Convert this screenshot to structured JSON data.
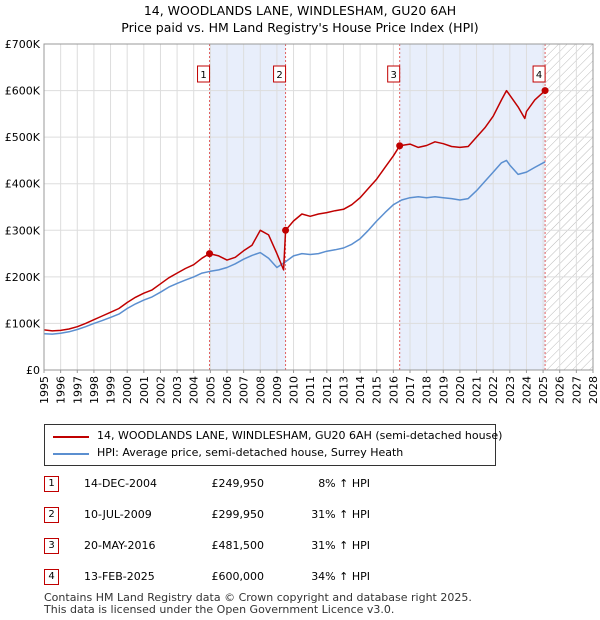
{
  "chart_data": {
    "type": "line",
    "title": "14, WOODLANDS LANE, WINDLESHAM, GU20 6AH",
    "subtitle": "Price paid vs. HM Land Registry's House Price Index (HPI)",
    "xlabel": "",
    "ylabel": "",
    "xlim": [
      1995,
      2028
    ],
    "ylim": [
      0,
      700000
    ],
    "x_ticks": [
      "1995",
      "1996",
      "1997",
      "1998",
      "1999",
      "2000",
      "2001",
      "2002",
      "2003",
      "2004",
      "2005",
      "2006",
      "2007",
      "2008",
      "2009",
      "2010",
      "2011",
      "2012",
      "2013",
      "2014",
      "2015",
      "2016",
      "2017",
      "2018",
      "2019",
      "2020",
      "2021",
      "2022",
      "2023",
      "2024",
      "2025",
      "2026",
      "2027",
      "2028"
    ],
    "y_ticks": [
      {
        "value": 0,
        "label": "£0"
      },
      {
        "value": 100000,
        "label": "£100K"
      },
      {
        "value": 200000,
        "label": "£200K"
      },
      {
        "value": 300000,
        "label": "£300K"
      },
      {
        "value": 400000,
        "label": "£400K"
      },
      {
        "value": 500000,
        "label": "£500K"
      },
      {
        "value": 600000,
        "label": "£600K"
      },
      {
        "value": 700000,
        "label": "£700K"
      }
    ],
    "grid": true,
    "ownership_shading": [
      [
        2004.95,
        2009.52
      ],
      [
        2016.38,
        2025.12
      ]
    ],
    "future_hatch_from": 2025.12,
    "series": [
      {
        "name": "14, WOODLANDS LANE, WINDLESHAM, GU20 6AH (semi-detached house)",
        "color": "#c00000",
        "x": [
          1995,
          1995.5,
          1996,
          1996.5,
          1997,
          1997.5,
          1998,
          1998.5,
          1999,
          1999.5,
          2000,
          2000.5,
          2001,
          2001.5,
          2002,
          2002.5,
          2003,
          2003.5,
          2004,
          2004.5,
          2004.95,
          2005.5,
          2006,
          2006.5,
          2007,
          2007.5,
          2008,
          2008.5,
          2009,
          2009.4,
          2009.52,
          2010,
          2010.5,
          2011,
          2011.5,
          2012,
          2012.5,
          2013,
          2013.5,
          2014,
          2014.5,
          2015,
          2015.5,
          2016,
          2016.38,
          2017,
          2017.5,
          2018,
          2018.5,
          2019,
          2019.5,
          2020,
          2020.5,
          2021,
          2021.5,
          2022,
          2022.5,
          2022.8,
          2023,
          2023.5,
          2023.9,
          2024,
          2024.5,
          2025.12
        ],
        "values": [
          86000,
          84000,
          85000,
          88000,
          93000,
          100000,
          108000,
          116000,
          124000,
          132000,
          145000,
          156000,
          165000,
          172000,
          185000,
          198000,
          208000,
          218000,
          226000,
          240000,
          249950,
          245000,
          236000,
          242000,
          256000,
          268000,
          300000,
          290000,
          250000,
          215000,
          299950,
          320000,
          335000,
          330000,
          335000,
          338000,
          342000,
          345000,
          355000,
          370000,
          390000,
          410000,
          435000,
          460000,
          481500,
          485000,
          478000,
          482000,
          490000,
          486000,
          480000,
          478000,
          480000,
          500000,
          520000,
          545000,
          580000,
          600000,
          590000,
          565000,
          540000,
          555000,
          580000,
          600000
        ]
      },
      {
        "name": "HPI: Average price, semi-detached house, Surrey Heath",
        "color": "#5b8fd0",
        "x": [
          1995,
          1995.5,
          1996,
          1996.5,
          1997,
          1997.5,
          1998,
          1998.5,
          1999,
          1999.5,
          2000,
          2000.5,
          2001,
          2001.5,
          2002,
          2002.5,
          2003,
          2003.5,
          2004,
          2004.5,
          2005,
          2005.5,
          2006,
          2006.5,
          2007,
          2007.5,
          2008,
          2008.5,
          2009,
          2009.5,
          2010,
          2010.5,
          2011,
          2011.5,
          2012,
          2012.5,
          2013,
          2013.5,
          2014,
          2014.5,
          2015,
          2015.5,
          2016,
          2016.5,
          2017,
          2017.5,
          2018,
          2018.5,
          2019,
          2019.5,
          2020,
          2020.5,
          2021,
          2021.5,
          2022,
          2022.5,
          2022.8,
          2023,
          2023.5,
          2024,
          2024.5,
          2025.12
        ],
        "values": [
          78000,
          77000,
          79000,
          82000,
          87000,
          93000,
          100000,
          106000,
          113000,
          120000,
          132000,
          142000,
          150000,
          157000,
          167000,
          178000,
          186000,
          193000,
          200000,
          208000,
          212000,
          215000,
          220000,
          228000,
          238000,
          246000,
          252000,
          240000,
          220000,
          232000,
          245000,
          250000,
          248000,
          250000,
          255000,
          258000,
          262000,
          270000,
          282000,
          300000,
          320000,
          338000,
          355000,
          365000,
          370000,
          372000,
          370000,
          372000,
          370000,
          368000,
          365000,
          368000,
          385000,
          405000,
          425000,
          445000,
          450000,
          440000,
          420000,
          425000,
          435000,
          447000
        ]
      }
    ],
    "sales": [
      {
        "id": "1",
        "x": 2004.95,
        "value": 249950
      },
      {
        "id": "2",
        "x": 2009.52,
        "value": 299950
      },
      {
        "id": "3",
        "x": 2016.38,
        "value": 481500
      },
      {
        "id": "4",
        "x": 2025.12,
        "value": 600000
      }
    ]
  },
  "legend": {
    "property_label": "14, WOODLANDS LANE, WINDLESHAM, GU20 6AH (semi-detached house)",
    "hpi_label": "HPI: Average price, semi-detached house, Surrey Heath"
  },
  "transactions": [
    {
      "id": "1",
      "date": "14-DEC-2004",
      "price": "£249,950",
      "change": "8% ↑ HPI"
    },
    {
      "id": "2",
      "date": "10-JUL-2009",
      "price": "£299,950",
      "change": "31% ↑ HPI"
    },
    {
      "id": "3",
      "date": "20-MAY-2016",
      "price": "£481,500",
      "change": "31% ↑ HPI"
    },
    {
      "id": "4",
      "date": "13-FEB-2025",
      "price": "£600,000",
      "change": "34% ↑ HPI"
    }
  ],
  "footer": {
    "line1": "Contains HM Land Registry data © Crown copyright and database right 2025.",
    "line2": "This data is licensed under the Open Government Licence v3.0."
  },
  "colors": {
    "property": "#c00000",
    "hpi": "#5b8fd0",
    "shade": "#e8eefb",
    "grid": "#dddddd",
    "vline": "#e06060"
  }
}
